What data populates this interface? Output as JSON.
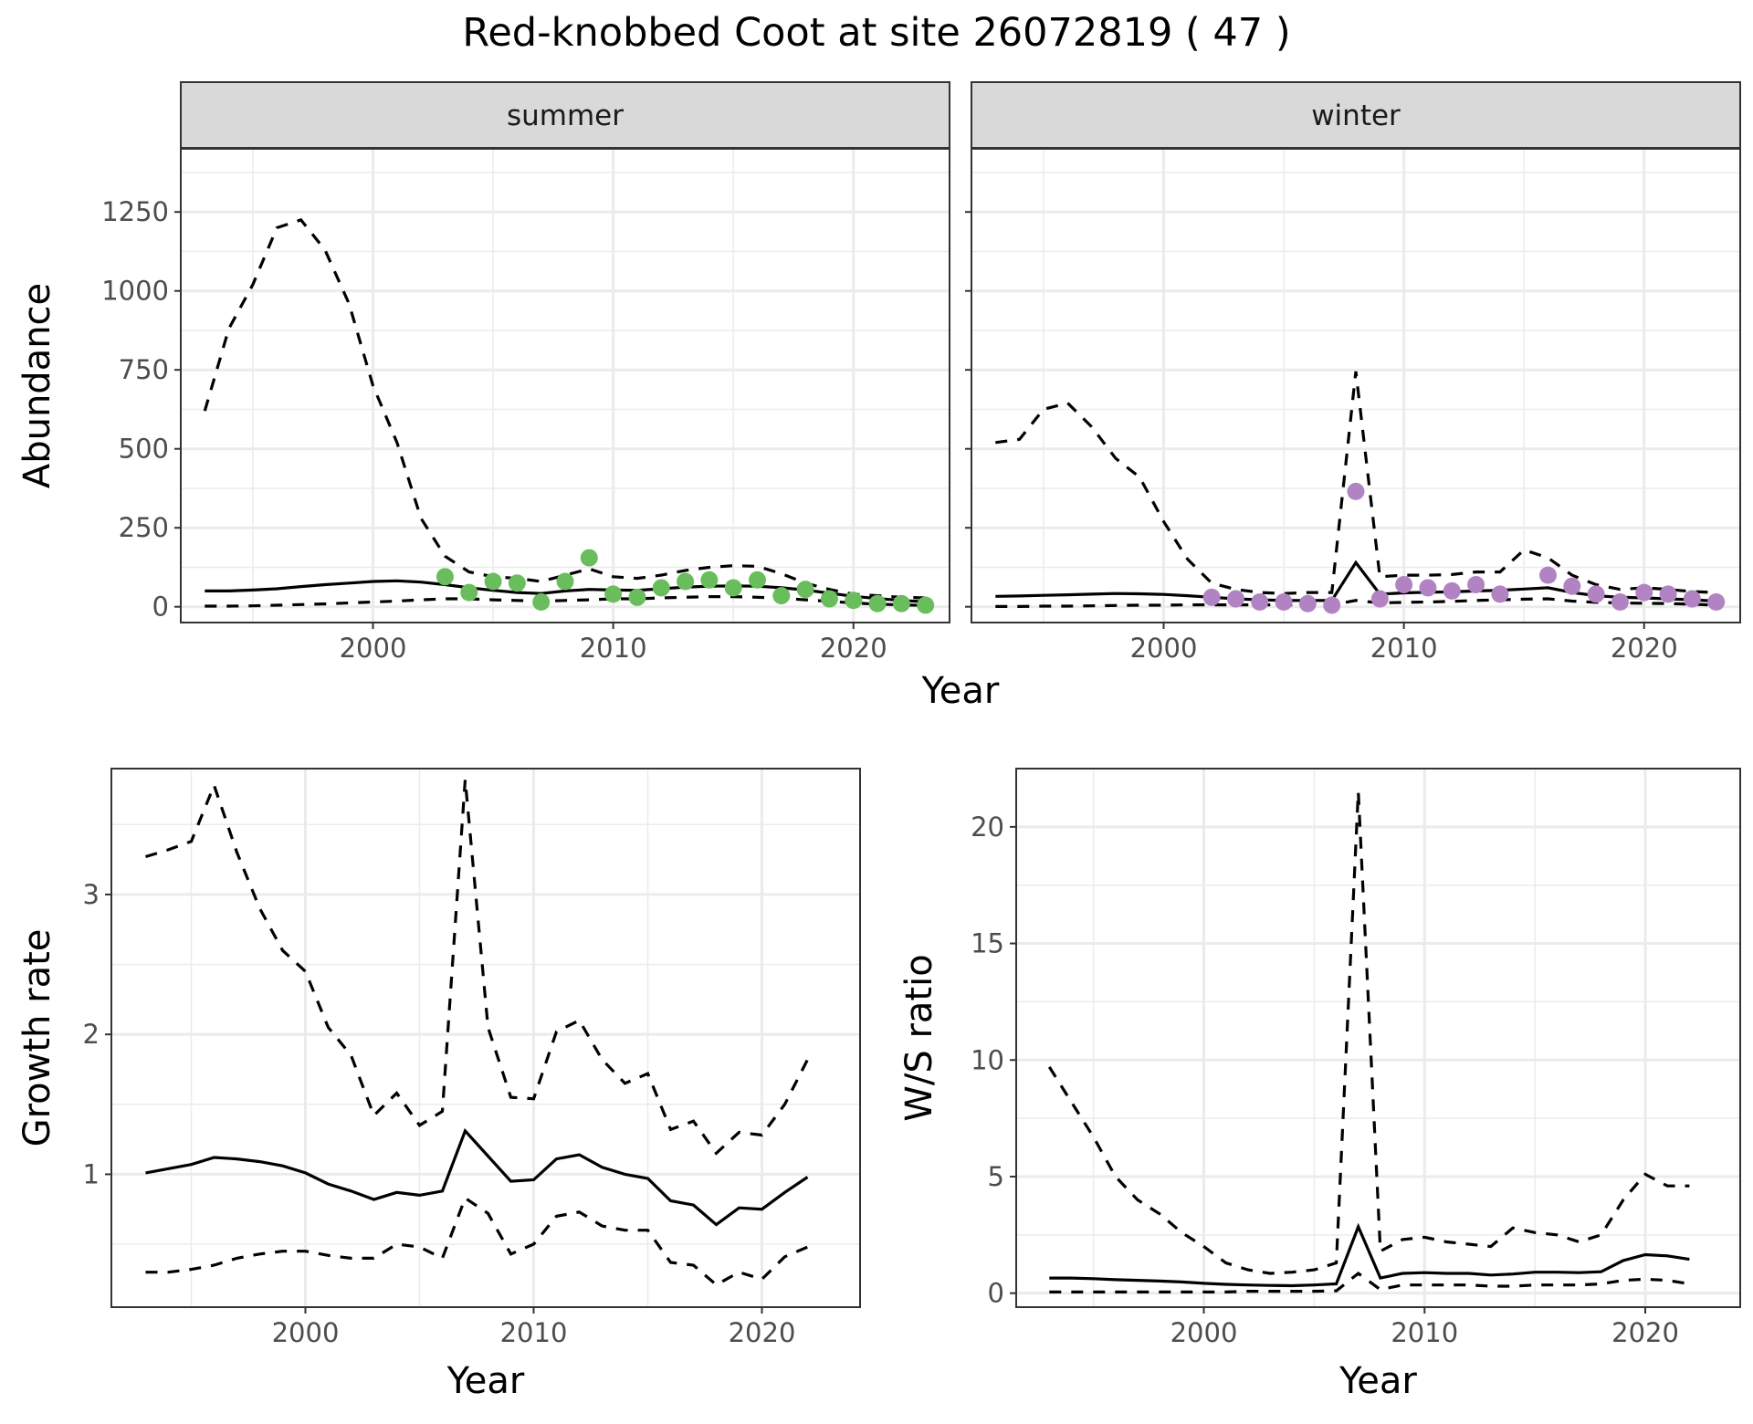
{
  "title": "Red-knobbed Coot at site 26072819 ( 47 )",
  "chart_data": [
    {
      "type": "line",
      "facet": "summer",
      "xlabel": "",
      "ylabel": "Abundance",
      "xlim": [
        1992,
        2024
      ],
      "ylim": [
        -50,
        1450
      ],
      "xticks": [
        2000,
        2010,
        2020
      ],
      "yticks": [
        0,
        250,
        500,
        750,
        1000,
        1250
      ],
      "point_color": "#6abd5c",
      "mid": {
        "x": [
          1993,
          1994,
          1995,
          1996,
          1997,
          1998,
          1999,
          2000,
          2001,
          2002,
          2003,
          2004,
          2005,
          2006,
          2007,
          2008,
          2009,
          2010,
          2011,
          2012,
          2013,
          2014,
          2015,
          2016,
          2017,
          2018,
          2019,
          2020,
          2021,
          2022,
          2023
        ],
        "y": [
          50,
          50,
          53,
          57,
          64,
          70,
          75,
          80,
          82,
          78,
          70,
          60,
          52,
          45,
          42,
          50,
          55,
          53,
          52,
          57,
          62,
          65,
          66,
          65,
          60,
          53,
          43,
          33,
          26,
          20,
          16
        ]
      },
      "upper": {
        "x": [
          1993,
          1994,
          1995,
          1996,
          1997,
          1998,
          1999,
          2000,
          2001,
          2002,
          2003,
          2004,
          2005,
          2006,
          2007,
          2008,
          2009,
          2010,
          2011,
          2012,
          2013,
          2014,
          2015,
          2016,
          2017,
          2018,
          2019,
          2020,
          2021,
          2022,
          2023
        ],
        "y": [
          620,
          880,
          1020,
          1200,
          1225,
          1130,
          960,
          700,
          520,
          280,
          160,
          110,
          95,
          90,
          80,
          100,
          120,
          95,
          90,
          100,
          115,
          125,
          130,
          128,
          105,
          75,
          55,
          40,
          35,
          30,
          28
        ]
      },
      "lower": {
        "x": [
          1993,
          1994,
          1995,
          1996,
          1997,
          1998,
          1999,
          2000,
          2001,
          2002,
          2003,
          2004,
          2005,
          2006,
          2007,
          2008,
          2009,
          2010,
          2011,
          2012,
          2013,
          2014,
          2015,
          2016,
          2017,
          2018,
          2019,
          2020,
          2021,
          2022,
          2023
        ],
        "y": [
          2,
          2,
          3,
          5,
          7,
          9,
          12,
          15,
          18,
          22,
          25,
          25,
          22,
          20,
          18,
          20,
          22,
          25,
          25,
          28,
          30,
          32,
          32,
          30,
          27,
          22,
          17,
          12,
          8,
          6,
          4
        ]
      },
      "points": {
        "x": [
          2003,
          2004,
          2005,
          2006,
          2007,
          2008,
          2009,
          2010,
          2011,
          2012,
          2013,
          2014,
          2015,
          2016,
          2017,
          2018,
          2019,
          2020,
          2021,
          2022,
          2023
        ],
        "y": [
          95,
          45,
          80,
          75,
          15,
          80,
          155,
          40,
          30,
          60,
          80,
          85,
          60,
          85,
          35,
          55,
          25,
          20,
          10,
          10,
          5
        ]
      }
    },
    {
      "type": "line",
      "facet": "winter",
      "xlabel": "",
      "ylabel": "",
      "xlim": [
        1992,
        2024
      ],
      "ylim": [
        -50,
        1450
      ],
      "xticks": [
        2000,
        2010,
        2020
      ],
      "yticks": [
        0,
        250,
        500,
        750,
        1000,
        1250
      ],
      "point_color": "#b283c2",
      "mid": {
        "x": [
          1993,
          1994,
          1995,
          1996,
          1997,
          1998,
          1999,
          2000,
          2001,
          2002,
          2003,
          2004,
          2005,
          2006,
          2007,
          2008,
          2009,
          2010,
          2011,
          2012,
          2013,
          2014,
          2015,
          2016,
          2017,
          2018,
          2019,
          2020,
          2021,
          2022,
          2023
        ],
        "y": [
          33,
          34,
          36,
          38,
          40,
          42,
          41,
          39,
          35,
          30,
          25,
          22,
          20,
          20,
          20,
          140,
          40,
          44,
          46,
          47,
          50,
          52,
          56,
          60,
          45,
          35,
          30,
          28,
          25,
          22,
          18
        ]
      },
      "upper": {
        "x": [
          1993,
          1994,
          1995,
          1996,
          1997,
          1998,
          1999,
          2000,
          2001,
          2002,
          2003,
          2004,
          2005,
          2006,
          2007,
          2008,
          2009,
          2010,
          2011,
          2012,
          2013,
          2014,
          2015,
          2016,
          2017,
          2018,
          2019,
          2020,
          2021,
          2022,
          2023
        ],
        "y": [
          520,
          530,
          625,
          645,
          570,
          470,
          410,
          270,
          150,
          75,
          55,
          45,
          42,
          45,
          45,
          745,
          95,
          100,
          100,
          102,
          110,
          110,
          180,
          155,
          100,
          70,
          55,
          60,
          55,
          48,
          45
        ]
      },
      "lower": {
        "x": [
          1993,
          1994,
          1995,
          1996,
          1997,
          1998,
          1999,
          2000,
          2001,
          2002,
          2003,
          2004,
          2005,
          2006,
          2007,
          2008,
          2009,
          2010,
          2011,
          2012,
          2013,
          2014,
          2015,
          2016,
          2017,
          2018,
          2019,
          2020,
          2021,
          2022,
          2023
        ],
        "y": [
          1,
          1,
          2,
          2,
          3,
          4,
          5,
          5,
          6,
          6,
          6,
          6,
          6,
          6,
          6,
          20,
          12,
          14,
          15,
          17,
          20,
          22,
          24,
          25,
          18,
          14,
          12,
          11,
          10,
          8,
          5
        ]
      },
      "points": {
        "x": [
          2002,
          2003,
          2004,
          2005,
          2006,
          2007,
          2008,
          2009,
          2010,
          2011,
          2012,
          2013,
          2014,
          2016,
          2017,
          2018,
          2019,
          2020,
          2021,
          2022,
          2023
        ],
        "y": [
          30,
          25,
          15,
          15,
          10,
          5,
          365,
          25,
          70,
          60,
          50,
          70,
          40,
          100,
          65,
          40,
          15,
          45,
          40,
          25,
          15
        ]
      }
    },
    {
      "type": "line",
      "xlabel": "Year",
      "ylabel": "Growth rate",
      "xlim": [
        1991.5,
        2024.3
      ],
      "ylim": [
        0.05,
        3.9
      ],
      "xticks": [
        2000,
        2010,
        2020
      ],
      "yticks": [
        1,
        2,
        3
      ],
      "mid": {
        "x": [
          1993,
          1994,
          1995,
          1996,
          1997,
          1998,
          1999,
          2000,
          2001,
          2002,
          2003,
          2004,
          2005,
          2006,
          2007,
          2008,
          2009,
          2010,
          2011,
          2012,
          2013,
          2014,
          2015,
          2016,
          2017,
          2018,
          2019,
          2020,
          2021,
          2022
        ],
        "y": [
          1.01,
          1.04,
          1.07,
          1.12,
          1.11,
          1.09,
          1.06,
          1.01,
          0.93,
          0.88,
          0.82,
          0.87,
          0.85,
          0.88,
          1.31,
          1.13,
          0.95,
          0.96,
          1.11,
          1.14,
          1.05,
          1.0,
          0.97,
          0.81,
          0.78,
          0.64,
          0.76,
          0.75,
          0.87,
          0.98
        ]
      },
      "upper": {
        "x": [
          1993,
          1994,
          1995,
          1996,
          1997,
          1998,
          1999,
          2000,
          2001,
          2002,
          2003,
          2004,
          2005,
          2006,
          2007,
          2008,
          2009,
          2010,
          2011,
          2012,
          2013,
          2014,
          2015,
          2016,
          2017,
          2018,
          2019,
          2020,
          2021,
          2022
        ],
        "y": [
          3.27,
          3.32,
          3.38,
          3.78,
          3.3,
          2.9,
          2.6,
          2.45,
          2.05,
          1.85,
          1.42,
          1.58,
          1.35,
          1.45,
          3.82,
          2.05,
          1.55,
          1.54,
          2.02,
          2.1,
          1.82,
          1.65,
          1.72,
          1.32,
          1.38,
          1.15,
          1.3,
          1.28,
          1.5,
          1.82
        ]
      },
      "lower": {
        "x": [
          1993,
          1994,
          1995,
          1996,
          1997,
          1998,
          1999,
          2000,
          2001,
          2002,
          2003,
          2004,
          2005,
          2006,
          2007,
          2008,
          2009,
          2010,
          2011,
          2012,
          2013,
          2014,
          2015,
          2016,
          2017,
          2018,
          2019,
          2020,
          2021,
          2022
        ],
        "y": [
          0.3,
          0.3,
          0.32,
          0.35,
          0.4,
          0.43,
          0.45,
          0.45,
          0.42,
          0.4,
          0.4,
          0.5,
          0.48,
          0.4,
          0.83,
          0.72,
          0.43,
          0.5,
          0.7,
          0.73,
          0.63,
          0.6,
          0.6,
          0.37,
          0.35,
          0.21,
          0.3,
          0.25,
          0.41,
          0.48
        ]
      }
    },
    {
      "type": "line",
      "xlabel": "Year",
      "ylabel": "W/S ratio",
      "xlim": [
        1991.5,
        2024.3
      ],
      "ylim": [
        -0.6,
        22.5
      ],
      "xticks": [
        2000,
        2010,
        2020
      ],
      "yticks": [
        0,
        5,
        10,
        15,
        20
      ],
      "mid": {
        "x": [
          1993,
          1994,
          1995,
          1996,
          1997,
          1998,
          1999,
          2000,
          2001,
          2002,
          2003,
          2004,
          2005,
          2006,
          2007,
          2008,
          2009,
          2010,
          2011,
          2012,
          2013,
          2014,
          2015,
          2016,
          2017,
          2018,
          2019,
          2020,
          2021,
          2022
        ],
        "y": [
          0.65,
          0.65,
          0.62,
          0.58,
          0.55,
          0.52,
          0.48,
          0.42,
          0.38,
          0.35,
          0.33,
          0.32,
          0.35,
          0.4,
          2.85,
          0.65,
          0.85,
          0.88,
          0.85,
          0.85,
          0.78,
          0.82,
          0.9,
          0.9,
          0.88,
          0.92,
          1.4,
          1.65,
          1.6,
          1.45
        ]
      },
      "upper": {
        "x": [
          1993,
          1994,
          1995,
          1996,
          1997,
          1998,
          1999,
          2000,
          2001,
          2002,
          2003,
          2004,
          2005,
          2006,
          2007,
          2008,
          2009,
          2010,
          2011,
          2012,
          2013,
          2014,
          2015,
          2016,
          2017,
          2018,
          2019,
          2020,
          2021,
          2022
        ],
        "y": [
          9.7,
          8.2,
          6.7,
          5.0,
          4.0,
          3.4,
          2.6,
          2.0,
          1.3,
          1.0,
          0.85,
          0.9,
          1.0,
          1.3,
          21.5,
          1.8,
          2.3,
          2.4,
          2.2,
          2.1,
          2.0,
          2.8,
          2.6,
          2.5,
          2.2,
          2.5,
          4.0,
          5.1,
          4.6,
          4.6
        ]
      },
      "lower": {
        "x": [
          1993,
          1994,
          1995,
          1996,
          1997,
          1998,
          1999,
          2000,
          2001,
          2002,
          2003,
          2004,
          2005,
          2006,
          2007,
          2008,
          2009,
          2010,
          2011,
          2012,
          2013,
          2014,
          2015,
          2016,
          2017,
          2018,
          2019,
          2020,
          2021,
          2022
        ],
        "y": [
          0.05,
          0.05,
          0.05,
          0.05,
          0.05,
          0.05,
          0.05,
          0.05,
          0.05,
          0.08,
          0.08,
          0.08,
          0.08,
          0.1,
          0.85,
          0.15,
          0.35,
          0.35,
          0.35,
          0.35,
          0.3,
          0.3,
          0.35,
          0.35,
          0.35,
          0.4,
          0.55,
          0.6,
          0.55,
          0.4
        ]
      }
    }
  ]
}
